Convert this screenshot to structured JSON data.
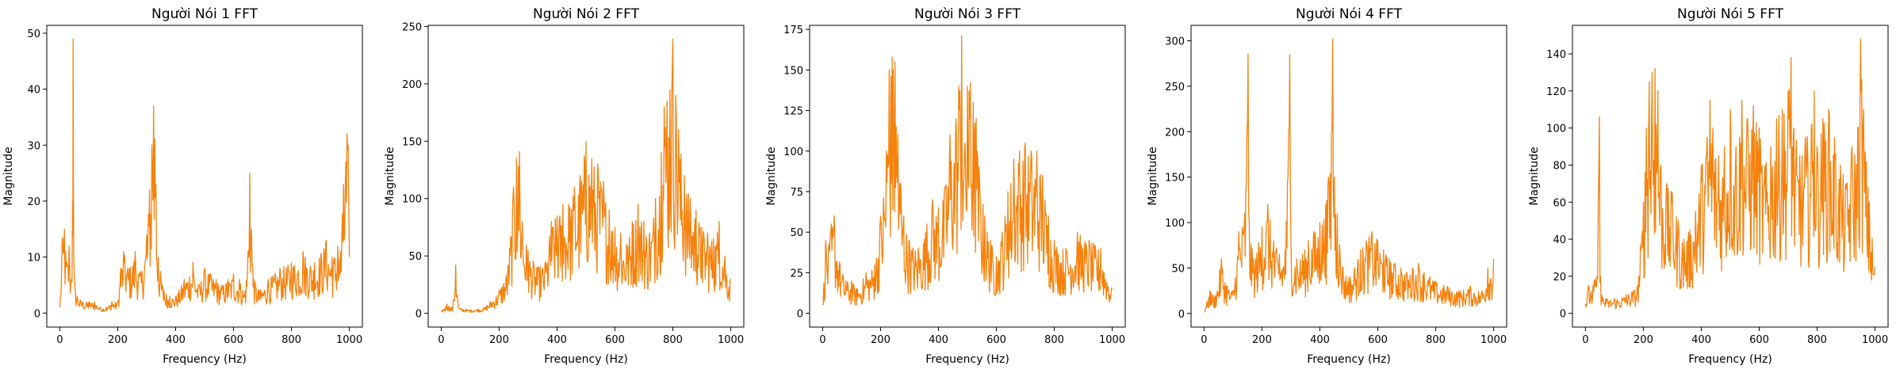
{
  "figure": {
    "line_color": "#f5820d"
  },
  "chart_data": [
    {
      "type": "line",
      "title": "Người Nói 1 FFT",
      "xlabel": "Frequency (Hz)",
      "ylabel": "Magnitude",
      "xlim": [
        -45,
        1045
      ],
      "ylim": [
        -2.5,
        51.4
      ],
      "xticks": [
        0,
        200,
        400,
        600,
        800,
        1000
      ],
      "yticks": [
        0,
        10,
        20,
        30,
        40,
        50
      ],
      "series": [
        {
          "x": [
            0,
            8,
            16,
            24,
            32,
            40,
            44,
            46,
            48,
            52,
            60,
            80,
            100,
            120,
            140,
            160,
            180,
            200,
            210,
            220,
            240,
            260,
            280,
            300,
            310,
            318,
            324,
            328,
            332,
            340,
            360,
            380,
            400,
            430,
            460,
            480,
            500,
            520,
            540,
            560,
            580,
            600,
            620,
            640,
            650,
            656,
            662,
            670,
            690,
            720,
            760,
            800,
            840,
            880,
            920,
            940,
            960,
            970,
            980,
            988,
            992,
            996,
            1000
          ],
          "y": [
            1,
            13,
            15,
            9,
            12,
            6,
            20,
            49,
            10,
            5,
            3,
            2,
            2,
            2,
            1,
            1,
            2,
            2,
            8,
            11,
            8,
            11,
            7,
            14,
            22,
            30,
            37,
            31,
            23,
            10,
            4,
            3,
            3,
            6,
            9,
            5,
            8,
            7,
            6,
            5,
            6,
            7,
            6,
            4,
            11,
            25,
            15,
            6,
            4,
            6,
            8,
            9,
            11,
            9,
            13,
            10,
            12,
            11,
            23,
            27,
            32,
            30,
            10
          ]
        }
      ]
    },
    {
      "type": "line",
      "title": "Người Nói 2 FFT",
      "xlabel": "Frequency (Hz)",
      "ylabel": "Magnitude",
      "xlim": [
        -45,
        1045
      ],
      "ylim": [
        -12,
        251
      ],
      "xticks": [
        0,
        200,
        400,
        600,
        800,
        1000
      ],
      "yticks": [
        0,
        50,
        100,
        150,
        200,
        250
      ],
      "series": [
        {
          "x": [
            0,
            20,
            40,
            50,
            60,
            100,
            150,
            200,
            230,
            250,
            260,
            270,
            280,
            300,
            330,
            360,
            380,
            400,
            420,
            440,
            460,
            480,
            500,
            520,
            540,
            560,
            580,
            600,
            620,
            640,
            660,
            680,
            700,
            720,
            740,
            760,
            770,
            780,
            790,
            800,
            810,
            820,
            840,
            860,
            880,
            900,
            920,
            940,
            960,
            980,
            1000
          ],
          "y": [
            2,
            8,
            5,
            42,
            5,
            3,
            5,
            20,
            40,
            110,
            135,
            141,
            80,
            55,
            40,
            45,
            80,
            85,
            95,
            95,
            110,
            120,
            150,
            135,
            130,
            115,
            90,
            75,
            70,
            60,
            80,
            95,
            80,
            70,
            100,
            140,
            180,
            185,
            195,
            239,
            190,
            160,
            120,
            100,
            90,
            75,
            70,
            65,
            80,
            50,
            30
          ]
        }
      ]
    },
    {
      "type": "line",
      "title": "Người Nói 3 FFT",
      "xlabel": "Frequency (Hz)",
      "ylabel": "Magnitude",
      "xlim": [
        -45,
        1045
      ],
      "ylim": [
        -8.5,
        177.5
      ],
      "xticks": [
        0,
        200,
        400,
        600,
        800,
        1000
      ],
      "yticks": [
        0,
        25,
        50,
        75,
        100,
        125,
        150,
        175
      ],
      "series": [
        {
          "x": [
            0,
            10,
            20,
            30,
            40,
            60,
            80,
            100,
            120,
            150,
            180,
            200,
            220,
            230,
            240,
            250,
            260,
            270,
            280,
            300,
            330,
            360,
            380,
            400,
            420,
            440,
            460,
            470,
            480,
            490,
            500,
            510,
            520,
            530,
            540,
            560,
            580,
            600,
            620,
            640,
            660,
            680,
            700,
            720,
            740,
            760,
            780,
            800,
            840,
            880,
            920,
            960,
            1000
          ],
          "y": [
            5,
            45,
            40,
            55,
            60,
            30,
            20,
            20,
            15,
            25,
            30,
            60,
            100,
            150,
            158,
            155,
            110,
            80,
            60,
            45,
            40,
            55,
            70,
            65,
            75,
            110,
            120,
            140,
            171,
            100,
            140,
            142,
            130,
            120,
            90,
            60,
            45,
            35,
            50,
            75,
            95,
            100,
            105,
            100,
            100,
            85,
            60,
            45,
            40,
            50,
            45,
            40,
            15
          ]
        }
      ]
    },
    {
      "type": "line",
      "title": "Người Nói 4 FFT",
      "xlabel": "Frequency (Hz)",
      "ylabel": "Magnitude",
      "xlim": [
        -45,
        1045
      ],
      "ylim": [
        -15,
        317
      ],
      "xticks": [
        0,
        200,
        400,
        600,
        800,
        1000
      ],
      "yticks": [
        0,
        50,
        100,
        150,
        200,
        250,
        300
      ],
      "series": [
        {
          "x": [
            0,
            20,
            40,
            60,
            80,
            100,
            120,
            140,
            148,
            152,
            156,
            170,
            200,
            220,
            240,
            260,
            280,
            292,
            296,
            300,
            320,
            340,
            360,
            380,
            400,
            420,
            430,
            440,
            444,
            450,
            460,
            480,
            500,
            520,
            540,
            560,
            580,
            600,
            620,
            640,
            660,
            680,
            700,
            720,
            740,
            760,
            780,
            800,
            840,
            880,
            920,
            960,
            980,
            1000
          ],
          "y": [
            2,
            25,
            20,
            60,
            30,
            25,
            90,
            110,
            200,
            285,
            100,
            60,
            95,
            120,
            80,
            65,
            70,
            200,
            285,
            80,
            60,
            65,
            80,
            90,
            100,
            120,
            150,
            200,
            302,
            150,
            110,
            50,
            40,
            50,
            70,
            80,
            90,
            80,
            70,
            60,
            55,
            50,
            45,
            50,
            55,
            45,
            40,
            35,
            30,
            25,
            30,
            25,
            50,
            60
          ]
        }
      ]
    },
    {
      "type": "line",
      "title": "Người Nói 5 FFT",
      "xlabel": "Frequency (Hz)",
      "ylabel": "Magnitude",
      "xlim": [
        -45,
        1045
      ],
      "ylim": [
        -7.4,
        155.4
      ],
      "xticks": [
        0,
        200,
        400,
        600,
        800,
        1000
      ],
      "yticks": [
        0,
        20,
        40,
        60,
        80,
        100,
        120,
        140
      ],
      "series": [
        {
          "x": [
            0,
            10,
            20,
            30,
            40,
            48,
            52,
            56,
            70,
            100,
            140,
            180,
            200,
            210,
            220,
            230,
            240,
            250,
            260,
            280,
            300,
            320,
            340,
            360,
            380,
            400,
            420,
            430,
            440,
            460,
            480,
            500,
            520,
            540,
            560,
            580,
            600,
            620,
            640,
            660,
            680,
            700,
            710,
            720,
            740,
            760,
            780,
            790,
            800,
            820,
            840,
            860,
            880,
            900,
            920,
            940,
            950,
            960,
            980,
            1000
          ],
          "y": [
            5,
            15,
            12,
            18,
            20,
            106,
            20,
            10,
            8,
            8,
            10,
            15,
            60,
            100,
            125,
            130,
            132,
            120,
            80,
            70,
            65,
            50,
            40,
            45,
            55,
            80,
            95,
            115,
            100,
            85,
            90,
            110,
            90,
            115,
            105,
            112,
            100,
            80,
            90,
            105,
            110,
            120,
            138,
            100,
            85,
            95,
            100,
            120,
            90,
            105,
            110,
            95,
            80,
            70,
            90,
            100,
            148,
            110,
            60,
            25
          ]
        }
      ]
    }
  ]
}
